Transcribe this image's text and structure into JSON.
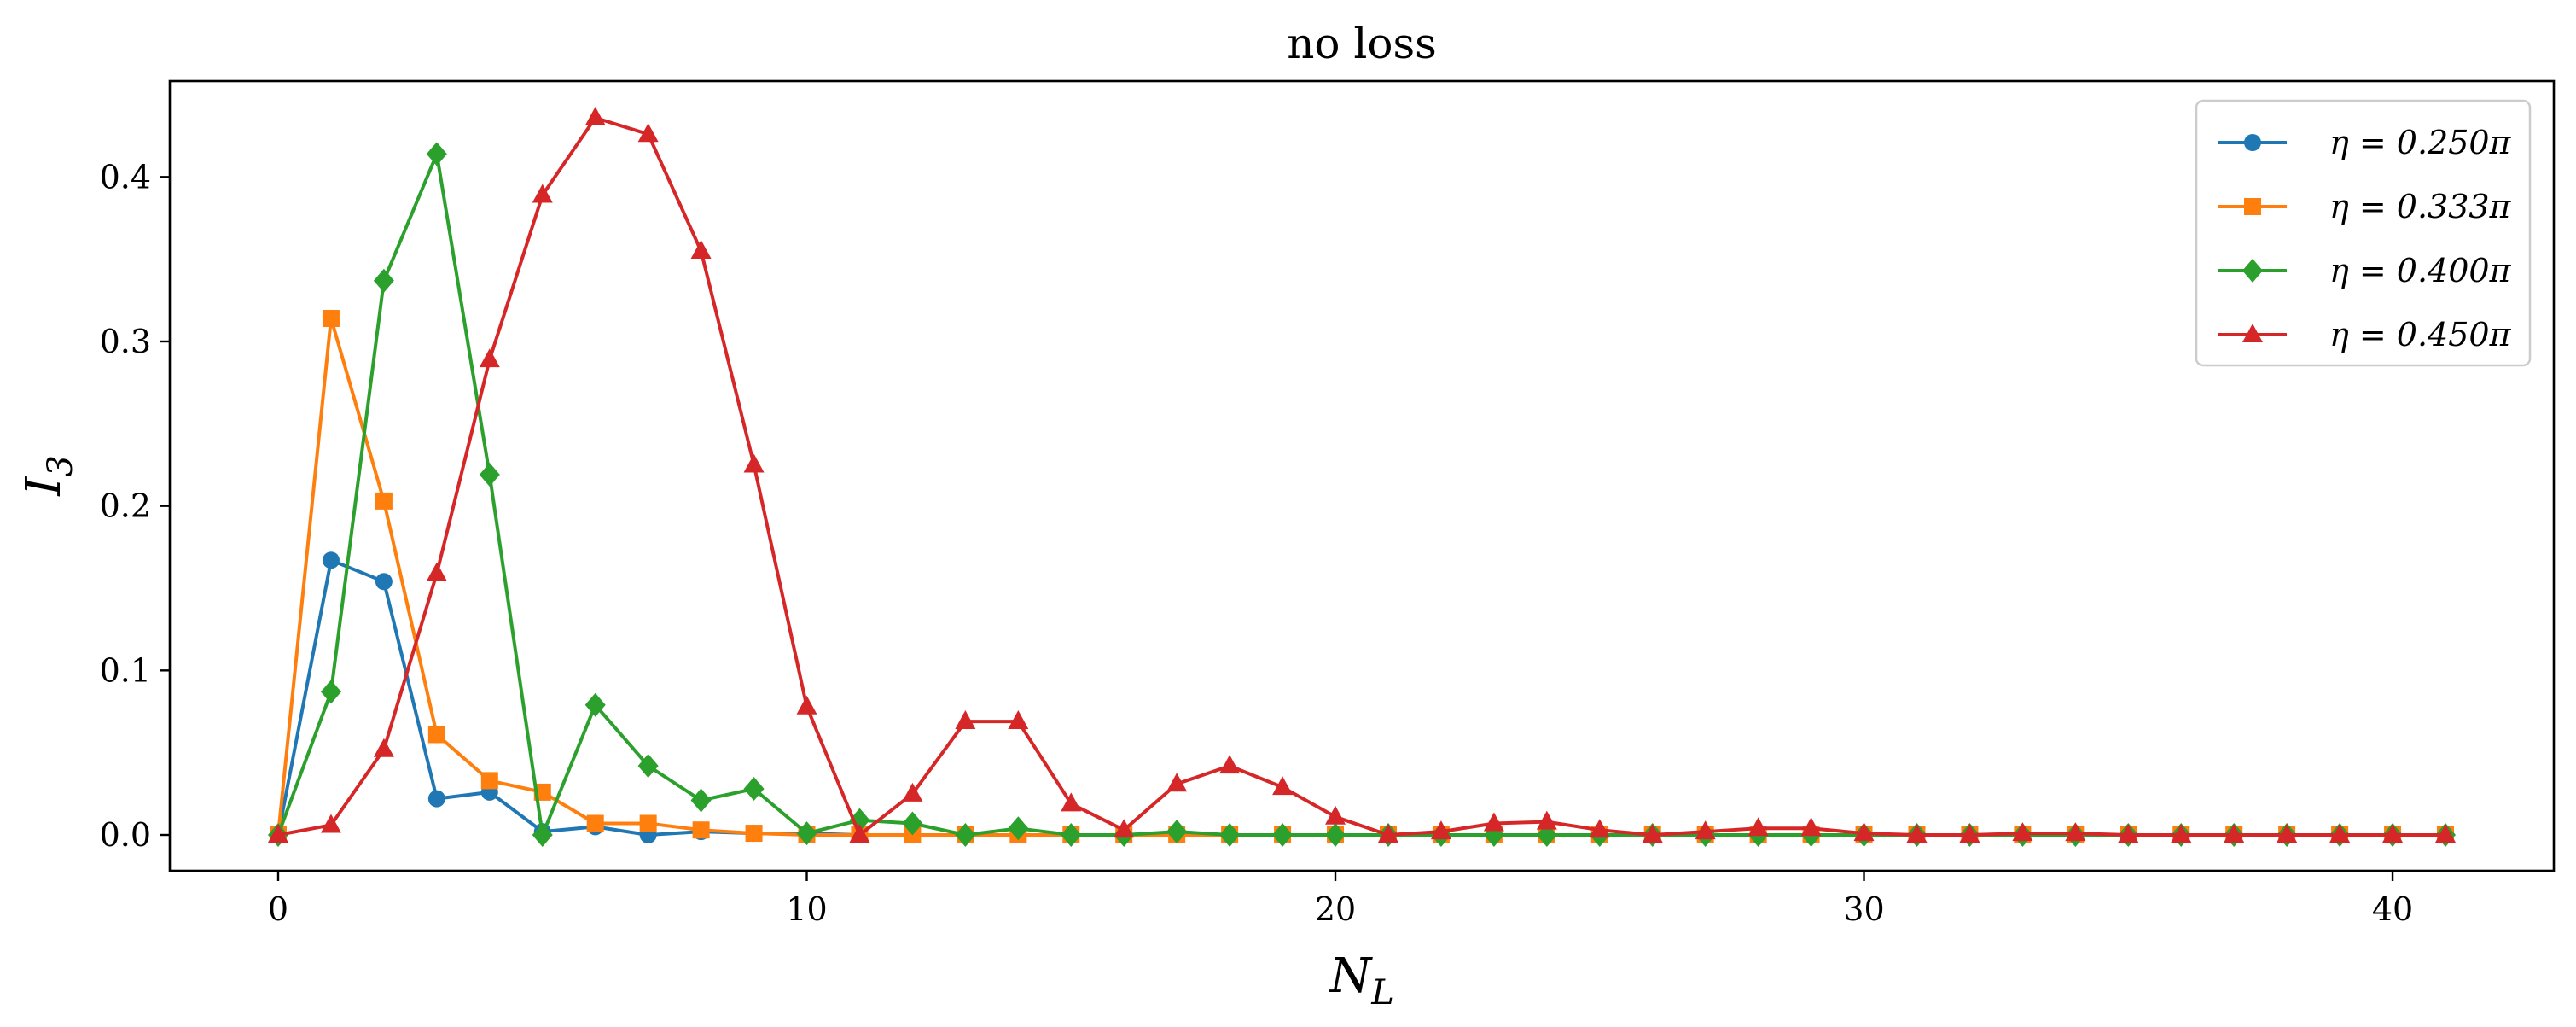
{
  "chart_data": {
    "type": "line",
    "title": "no loss",
    "xlabel": "N",
    "xlabel_sub": "L",
    "ylabel": "I",
    "ylabel_sub": "3",
    "xlim": [
      -2.05,
      43.05
    ],
    "ylim": [
      -0.0218,
      0.4583
    ],
    "xticks": [
      0,
      10,
      20,
      30,
      40
    ],
    "xtick_labels": [
      "0",
      "10",
      "20",
      "30",
      "40"
    ],
    "yticks": [
      0.0,
      0.1,
      0.2,
      0.3,
      0.4
    ],
    "ytick_labels": [
      "0.0",
      "0.1",
      "0.2",
      "0.3",
      "0.4"
    ],
    "grid": false,
    "legend_position": "top-right",
    "x": [
      0,
      1,
      2,
      3,
      4,
      5,
      6,
      7,
      8,
      9,
      10,
      11,
      12,
      13,
      14,
      15,
      16,
      17,
      18,
      19,
      20,
      21,
      22,
      23,
      24,
      25,
      26,
      27,
      28,
      29,
      30,
      31,
      32,
      33,
      34,
      35,
      36,
      37,
      38,
      39,
      40,
      41
    ],
    "series": [
      {
        "name": "η = 0.250π",
        "color": "#1f77b4",
        "marker": "circle",
        "values": [
          0.0,
          0.167,
          0.154,
          0.022,
          0.026,
          0.002,
          0.005,
          0.0,
          0.002,
          0.001,
          0.001,
          0.0,
          0.0,
          0.0,
          0.0,
          0.0,
          0.0,
          0.0,
          0.0,
          0.0,
          0.0,
          0.0,
          0.0,
          0.0,
          0.0,
          0.0,
          0.0,
          0.0,
          0.0,
          0.0,
          0.0,
          0.0,
          0.0,
          0.0,
          0.0,
          0.0,
          0.0,
          0.0,
          0.0,
          0.0,
          0.0,
          0.0
        ]
      },
      {
        "name": "η = 0.333π",
        "color": "#ff7f0e",
        "marker": "square",
        "values": [
          0.0,
          0.314,
          0.203,
          0.061,
          0.033,
          0.026,
          0.007,
          0.007,
          0.003,
          0.001,
          0.0,
          0.0,
          0.0,
          0.0,
          0.0,
          0.0,
          0.0,
          0.0,
          0.0,
          0.0,
          0.0,
          0.0,
          0.0,
          0.0,
          0.0,
          0.0,
          0.0,
          0.0,
          0.0,
          0.0,
          0.0,
          0.0,
          0.0,
          0.0,
          0.0,
          0.0,
          0.0,
          0.0,
          0.0,
          0.0,
          0.0,
          0.0
        ]
      },
      {
        "name": "η = 0.400π",
        "color": "#2ca02c",
        "marker": "diamond",
        "values": [
          0.0,
          0.087,
          0.337,
          0.414,
          0.219,
          0.0,
          0.079,
          0.042,
          0.021,
          0.028,
          0.001,
          0.009,
          0.007,
          0.0,
          0.004,
          0.0,
          0.0,
          0.002,
          0.0,
          0.0,
          0.0,
          0.0,
          0.0,
          0.0,
          0.0,
          0.0,
          0.0,
          0.0,
          0.0,
          0.0,
          0.0,
          0.0,
          0.0,
          0.0,
          0.0,
          0.0,
          0.0,
          0.0,
          0.0,
          0.0,
          0.0,
          0.0
        ]
      },
      {
        "name": "η = 0.450π",
        "color": "#d62728",
        "marker": "triangle",
        "values": [
          0.0,
          0.006,
          0.052,
          0.159,
          0.289,
          0.389,
          0.436,
          0.426,
          0.355,
          0.225,
          0.078,
          0.0,
          0.025,
          0.069,
          0.069,
          0.019,
          0.003,
          0.031,
          0.042,
          0.029,
          0.011,
          0.0,
          0.002,
          0.007,
          0.008,
          0.003,
          0.0,
          0.002,
          0.004,
          0.004,
          0.001,
          0.0,
          0.0,
          0.001,
          0.001,
          0.0,
          0.0,
          0.0,
          0.0,
          0.0,
          0.0,
          0.0
        ]
      }
    ]
  }
}
